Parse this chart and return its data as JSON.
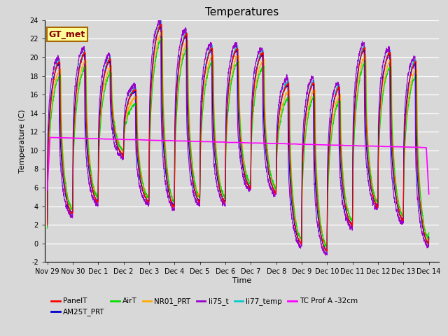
{
  "title": "Temperatures",
  "xlabel": "Time",
  "ylabel": "Temperature (C)",
  "ylim": [
    -2,
    24
  ],
  "yticks": [
    -2,
    0,
    2,
    4,
    6,
    8,
    10,
    12,
    14,
    16,
    18,
    20,
    22,
    24
  ],
  "plot_bg_color": "#d8d8d8",
  "fig_bg_color": "#d8d8d8",
  "series_colors": {
    "PanelT": "#ff0000",
    "AM25T_PRT": "#0000cc",
    "AirT": "#00dd00",
    "NR01_PRT": "#ffaa00",
    "li75_t": "#9900cc",
    "li77_temp": "#00cccc",
    "TC Prof A -32cm": "#ff00ff"
  },
  "gt_met_box": {
    "text": "GT_met",
    "bg": "#ffff99",
    "border": "#aa6600",
    "fontsize": 9
  },
  "x_tick_labels": [
    "Nov 29",
    "Nov 30",
    "Dec 1",
    "Dec 2",
    "Dec 3",
    "Dec 4",
    "Dec 5",
    "Dec 6",
    "Dec 7",
    "Dec 8",
    "Dec 9",
    "Dec 10",
    "Dec 11",
    "Dec 12",
    "Dec 13",
    "Dec 14"
  ],
  "x_tick_positions": [
    0,
    1,
    2,
    3,
    4,
    5,
    6,
    7,
    8,
    9,
    10,
    11,
    12,
    13,
    14,
    15
  ],
  "day_highs": [
    19.5,
    20.5,
    19.8,
    16.5,
    23.5,
    22.5,
    21.0,
    21.0,
    20.5,
    17.2,
    17.3,
    16.8,
    21.0,
    20.5,
    19.5,
    0
  ],
  "day_lows": [
    1.8,
    3.2,
    4.5,
    9.5,
    4.5,
    4.0,
    4.5,
    4.5,
    6.0,
    5.5,
    0.0,
    -0.8,
    2.0,
    4.0,
    2.5,
    0
  ],
  "tc_prof_start": 11.4,
  "tc_prof_end": 10.3
}
